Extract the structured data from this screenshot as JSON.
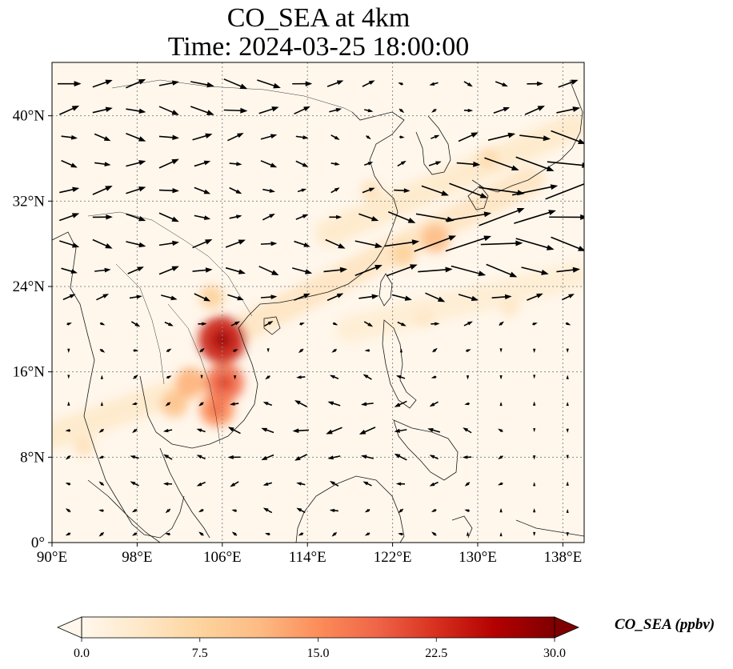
{
  "title": {
    "line1": "CO_SEA at 4km",
    "line2": "Time: 2024-03-25 18:00:00"
  },
  "map": {
    "lon_range": [
      90,
      140
    ],
    "lat_range": [
      0,
      45
    ],
    "lon_ticks": [
      {
        "value": 90,
        "label": "90°E"
      },
      {
        "value": 98,
        "label": "98°E"
      },
      {
        "value": 106,
        "label": "106°E"
      },
      {
        "value": 114,
        "label": "114°E"
      },
      {
        "value": 122,
        "label": "122°E"
      },
      {
        "value": 130,
        "label": "130°E"
      },
      {
        "value": 138,
        "label": "138°E"
      }
    ],
    "lat_ticks": [
      {
        "value": 0,
        "label": "0°"
      },
      {
        "value": 8,
        "label": "8°N"
      },
      {
        "value": 16,
        "label": "16°N"
      },
      {
        "value": 24,
        "label": "24°N"
      },
      {
        "value": 32,
        "label": "32°N"
      },
      {
        "value": 40,
        "label": "40°N"
      }
    ],
    "gridlines": true,
    "grid_color": "#8a8a8a"
  },
  "field": {
    "variable": "CO_SEA",
    "units": "ppbv",
    "plumes": [
      {
        "lon": 106,
        "lat": 19,
        "value": 24
      },
      {
        "lon": 106.2,
        "lat": 15,
        "value": 18
      },
      {
        "lon": 105.5,
        "lat": 12.5,
        "value": 15
      },
      {
        "lon": 103,
        "lat": 15,
        "value": 12
      },
      {
        "lon": 101.5,
        "lat": 13,
        "value": 10
      },
      {
        "lon": 105,
        "lat": 23,
        "value": 8
      },
      {
        "lon": 126,
        "lat": 28.5,
        "value": 11
      },
      {
        "lon": 123,
        "lat": 27,
        "value": 8
      },
      {
        "lon": 131,
        "lat": 36,
        "value": 6
      },
      {
        "lon": 120,
        "lat": 33,
        "value": 5
      },
      {
        "lon": 93,
        "lat": 9,
        "value": 5
      },
      {
        "lon": 125,
        "lat": 21,
        "value": 4
      },
      {
        "lon": 133,
        "lat": 22,
        "value": 4
      }
    ],
    "bands": [
      {
        "from": [
          106,
          19
        ],
        "to": [
          135,
          34
        ],
        "value": 5
      },
      {
        "from": [
          118,
          20
        ],
        "to": [
          139,
          25
        ],
        "value": 3
      },
      {
        "from": [
          90,
          10
        ],
        "to": [
          104,
          15
        ],
        "value": 4
      },
      {
        "from": [
          116,
          29
        ],
        "to": [
          139,
          39
        ],
        "value": 4
      }
    ]
  },
  "colorbar": {
    "min": 0,
    "max": 30,
    "extend": "both",
    "colormap": "OrRd",
    "stops": [
      "#fff7ec",
      "#fee8c8",
      "#fdd49e",
      "#fdbb84",
      "#fc8d59",
      "#ef6548",
      "#d7301f",
      "#b30000",
      "#7f0000"
    ],
    "ticks": [
      {
        "value": 0,
        "label": "0.0"
      },
      {
        "value": 7.5,
        "label": "7.5"
      },
      {
        "value": 15,
        "label": "15.0"
      },
      {
        "value": 22.5,
        "label": "22.5"
      },
      {
        "value": 30,
        "label": "30.0"
      }
    ],
    "title": "CO_SEA (ppbv)"
  },
  "wind_rows": [
    {
      "lat": 43.0,
      "u": [
        6,
        5,
        5,
        5,
        6,
        6,
        6,
        5,
        4,
        3,
        -1,
        -2,
        2,
        3,
        4,
        5
      ]
    },
    {
      "lat": 40.5,
      "u": [
        5,
        5,
        5,
        5,
        6,
        6,
        5,
        4,
        3,
        2,
        1,
        -1,
        2,
        4,
        5,
        6
      ]
    },
    {
      "lat": 38.0,
      "u": [
        4,
        4,
        5,
        5,
        5,
        4,
        4,
        3,
        2,
        1,
        1,
        2,
        5,
        7,
        8,
        9
      ]
    },
    {
      "lat": 35.5,
      "u": [
        4,
        4,
        5,
        5,
        4,
        3,
        4,
        3,
        2,
        2,
        2,
        3,
        6,
        9,
        10,
        11
      ]
    },
    {
      "lat": 33.0,
      "u": [
        5,
        5,
        5,
        5,
        4,
        3,
        3,
        2,
        2,
        3,
        4,
        7,
        10,
        12,
        12,
        12
      ]
    },
    {
      "lat": 30.5,
      "u": [
        5,
        5,
        5,
        5,
        4,
        3,
        3,
        3,
        3,
        5,
        7,
        10,
        12,
        12,
        11,
        10
      ]
    },
    {
      "lat": 28.0,
      "u": [
        5,
        5,
        5,
        5,
        5,
        5,
        4,
        4,
        5,
        7,
        9,
        11,
        12,
        11,
        10,
        9
      ]
    },
    {
      "lat": 25.5,
      "u": [
        4,
        4,
        4,
        5,
        5,
        5,
        5,
        5,
        6,
        7,
        8,
        9,
        9,
        8,
        7,
        6
      ]
    },
    {
      "lat": 23.0,
      "u": [
        3,
        3,
        3,
        4,
        4,
        4,
        4,
        4,
        4,
        5,
        5,
        5,
        5,
        5,
        4,
        3
      ]
    },
    {
      "lat": 20.5,
      "u": [
        1,
        1,
        2,
        2,
        2,
        2,
        2,
        1,
        1,
        2,
        2,
        2,
        2,
        1,
        1,
        1
      ]
    },
    {
      "lat": 18.0,
      "u": [
        0,
        1,
        1,
        1,
        1,
        1,
        0,
        -1,
        -1,
        -1,
        0,
        1,
        1,
        0,
        0,
        0
      ]
    },
    {
      "lat": 15.5,
      "u": [
        0,
        0,
        1,
        1,
        0,
        0,
        -1,
        -2,
        -2,
        -2,
        -2,
        -1,
        0,
        0,
        0,
        0
      ]
    },
    {
      "lat": 13.0,
      "u": [
        0,
        0,
        -1,
        -1,
        -1,
        -2,
        -2,
        -3,
        -3,
        -3,
        -3,
        -2,
        -1,
        0,
        0,
        0
      ]
    },
    {
      "lat": 10.5,
      "u": [
        -1,
        -1,
        -1,
        -2,
        -2,
        -3,
        -3,
        -4,
        -4,
        -4,
        -3,
        -3,
        -2,
        -1,
        0,
        0
      ]
    },
    {
      "lat": 8.0,
      "u": [
        -1,
        -1,
        -2,
        -2,
        -2,
        -3,
        -3,
        -3,
        -3,
        -3,
        -3,
        -2,
        -2,
        -1,
        0,
        0
      ]
    },
    {
      "lat": 5.5,
      "u": [
        -1,
        -1,
        -2,
        -2,
        -2,
        -2,
        -2,
        -2,
        -2,
        -2,
        -2,
        -2,
        -1,
        -1,
        0,
        0
      ]
    },
    {
      "lat": 3.0,
      "u": [
        -1,
        -1,
        -1,
        -1,
        -1,
        -1,
        -2,
        -2,
        -2,
        -1,
        -1,
        -1,
        -1,
        0,
        0,
        0
      ]
    },
    {
      "lat": 0.8,
      "u": [
        -1,
        -1,
        -1,
        -1,
        -1,
        -1,
        -1,
        -1,
        -1,
        -1,
        -1,
        -1,
        0,
        0,
        0,
        0
      ]
    }
  ]
}
